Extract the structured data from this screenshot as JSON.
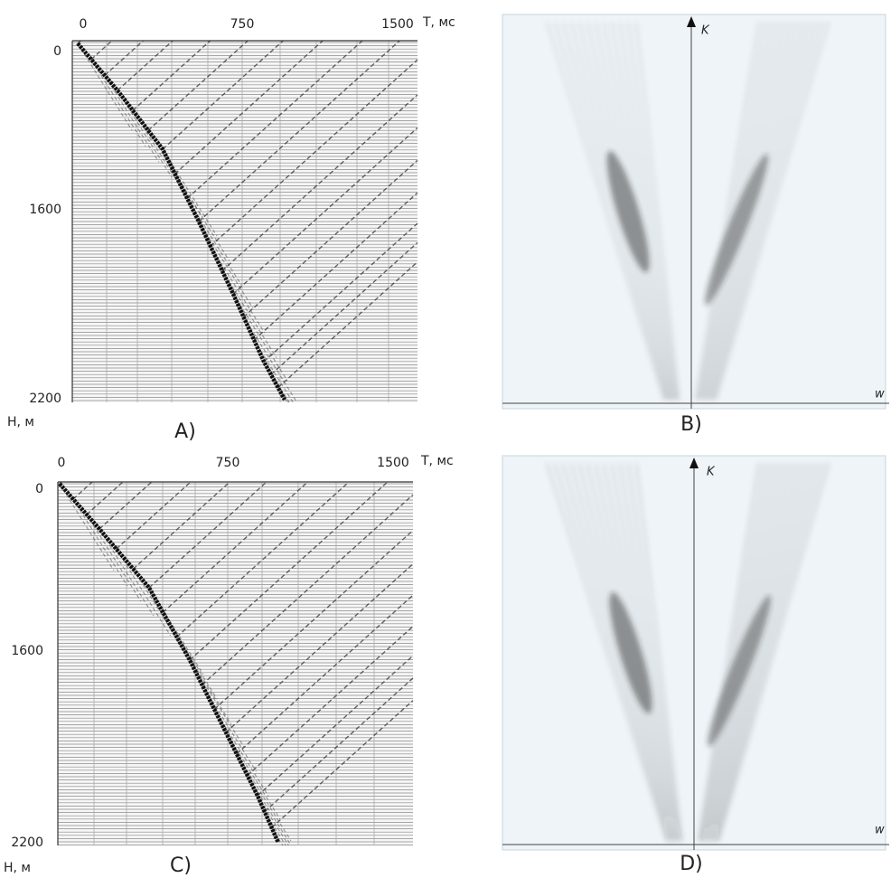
{
  "panels": [
    {
      "label": "A)",
      "x_axis": {
        "title": "T, мс",
        "ticks": [
          "0",
          "750",
          "1500"
        ]
      },
      "y_axis": {
        "title": "H, м",
        "ticks": [
          "0",
          "1600",
          "2200"
        ]
      }
    },
    {
      "label": "B)",
      "axes": {
        "vertical": "K",
        "horizontal": "w"
      }
    },
    {
      "label": "C)",
      "x_axis": {
        "title": "T, мс",
        "ticks": [
          "0",
          "750",
          "1500"
        ]
      },
      "y_axis": {
        "title": "H, м",
        "ticks": [
          "0",
          "1600",
          "2200"
        ]
      }
    },
    {
      "label": "D)",
      "axes": {
        "vertical": "K",
        "horizontal": "w"
      }
    }
  ]
}
